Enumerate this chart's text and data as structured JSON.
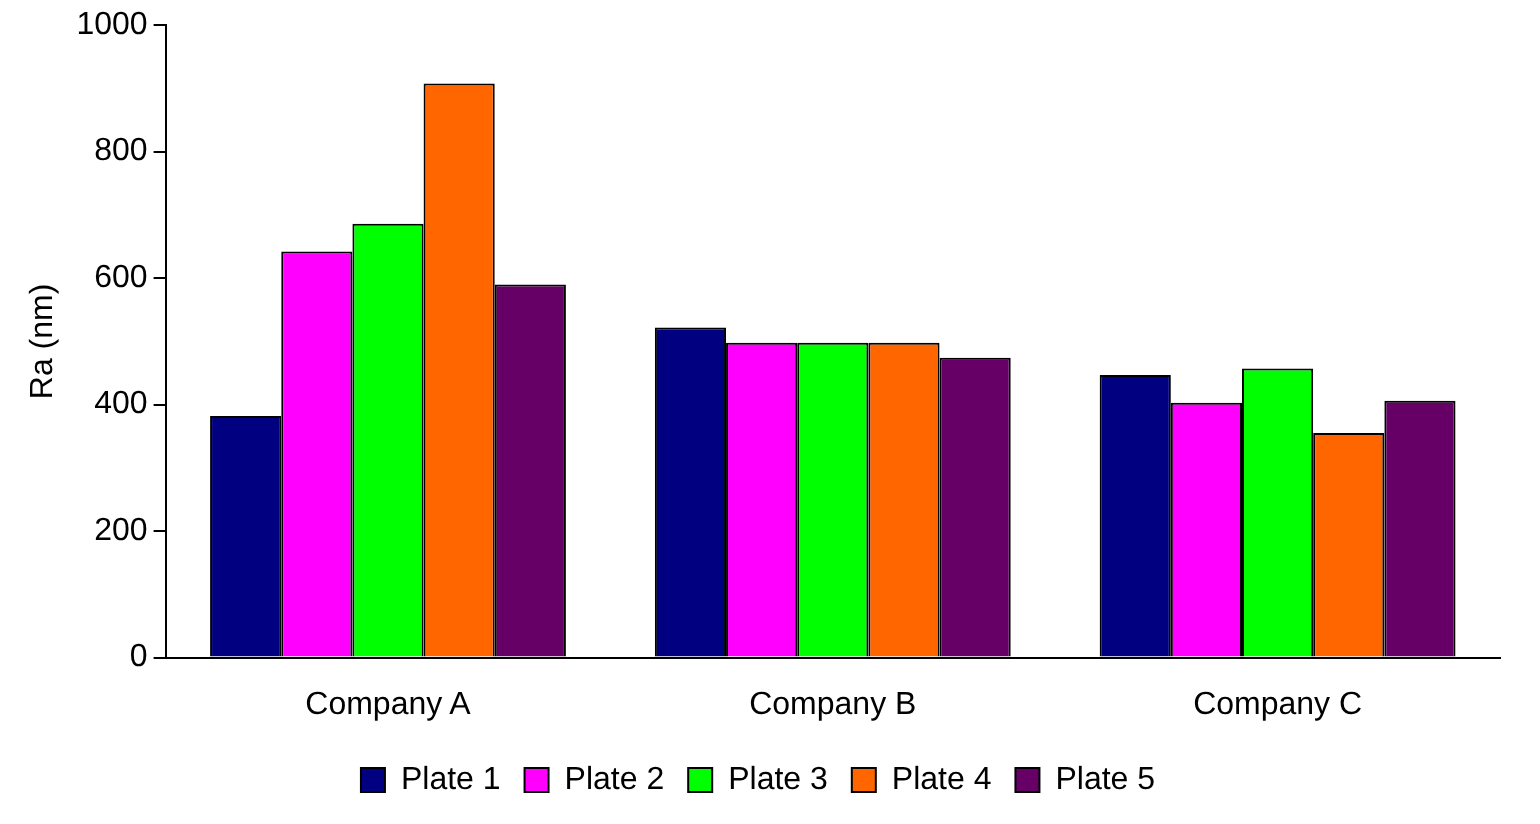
{
  "chart_data": {
    "type": "bar",
    "ylabel": "Ra (nm)",
    "categories": [
      "Company A",
      "Company B",
      "Company C"
    ],
    "series": [
      {
        "name": "Plate 1",
        "color": "#000080",
        "values": [
          382,
          522,
          447
        ]
      },
      {
        "name": "Plate 2",
        "color": "#ff00ff",
        "values": [
          642,
          498,
          403
        ]
      },
      {
        "name": "Plate 3",
        "color": "#00ff00",
        "values": [
          686,
          498,
          457
        ]
      },
      {
        "name": "Plate 4",
        "color": "#ff6600",
        "values": [
          908,
          498,
          355
        ]
      },
      {
        "name": "Plate 5",
        "color": "#660066",
        "values": [
          590,
          474,
          406
        ]
      }
    ],
    "ylim": [
      0,
      1000
    ],
    "yticks": [
      0,
      200,
      400,
      600,
      800,
      1000
    ],
    "grid": false,
    "legend": "bottom"
  }
}
